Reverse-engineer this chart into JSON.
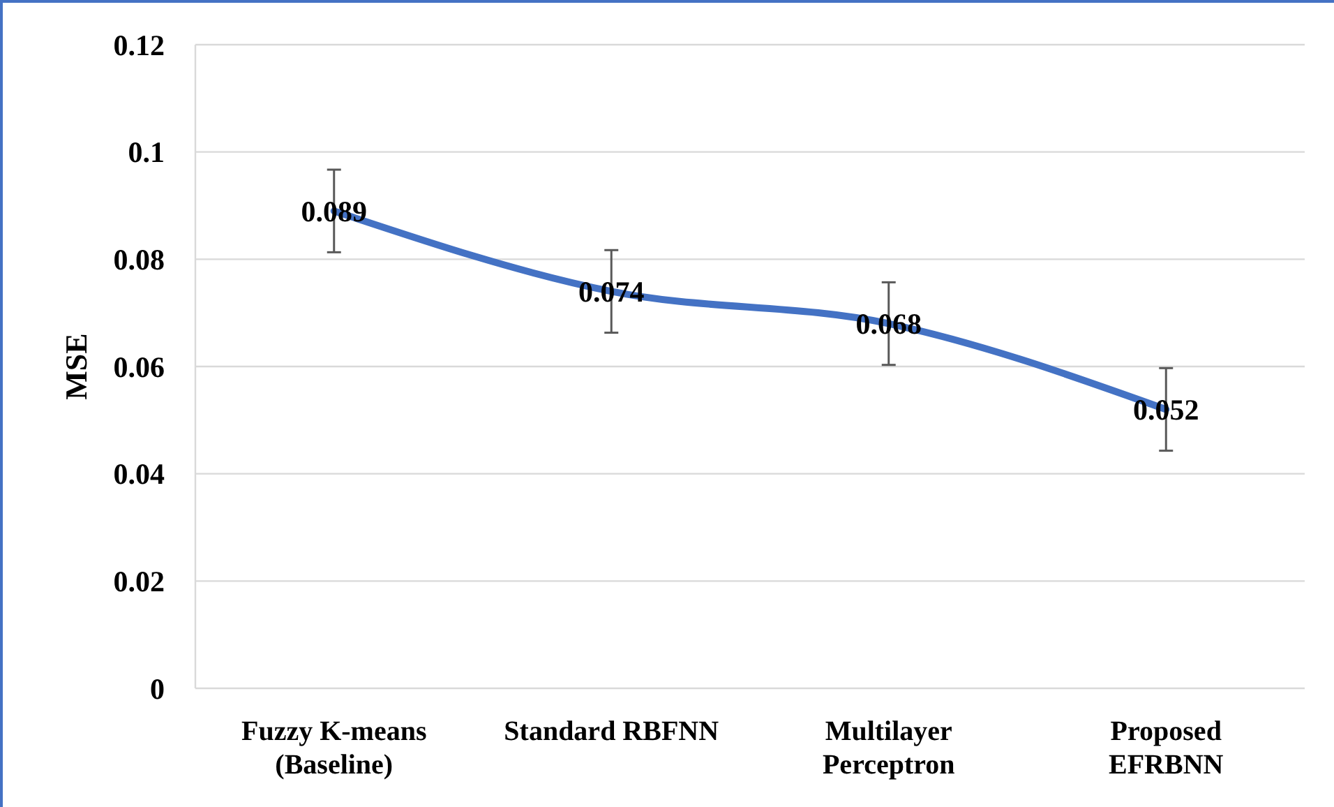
{
  "chart_data": {
    "type": "line",
    "ylabel": "MSE",
    "categories": [
      "Fuzzy K-means\n(Baseline)",
      "Standard RBFNN",
      "Multilayer\nPerceptron",
      "Proposed\nEFRBNN"
    ],
    "series": [
      {
        "color": "#4472c4",
        "values": [
          0.089,
          0.074,
          0.068,
          0.052
        ],
        "errors": [
          0.0077,
          0.0077,
          0.0077,
          0.0077
        ]
      }
    ],
    "ylim": [
      0,
      0.12
    ],
    "yticks": [
      0,
      0.02,
      0.04,
      0.06,
      0.08,
      0.1,
      0.12
    ],
    "grid": "y",
    "data_labels": true,
    "marker": "none",
    "line_style": "solid"
  }
}
